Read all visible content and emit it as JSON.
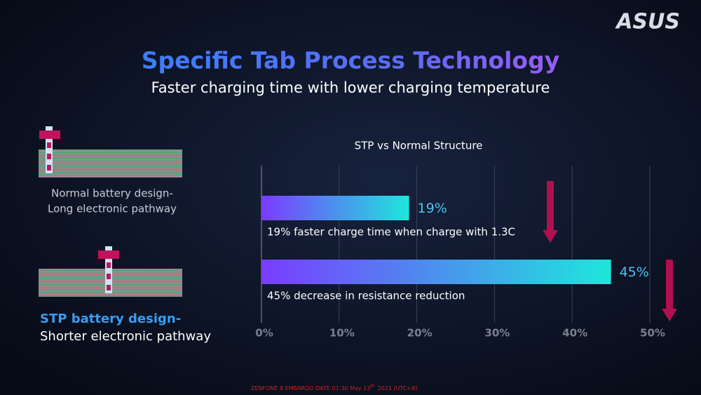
{
  "slide": {
    "logo": "ASUS",
    "title": "Specific Tab Process Technology",
    "subtitle": "Faster charging time with lower charging temperature",
    "normal_design": [
      "Normal battery design-",
      "Long electronic pathway"
    ],
    "stp_design": [
      "STP battery design-",
      "Shorter electronic pathway"
    ],
    "footer": [
      "ZENFONE 8 EMBARGO DATE 01:30 May 13",
      "th",
      "2021 (UTC+8)"
    ]
  },
  "chart_data": {
    "type": "bar",
    "orientation": "horizontal",
    "title": "STP vs Normal Structure",
    "categories": [
      "19% faster charge time when charge with 1.3C",
      "45% decrease in resistance reduction"
    ],
    "values": [
      19,
      45
    ],
    "value_labels": [
      "19%",
      "45%"
    ],
    "colors": [
      "#7a3cff",
      "#1ee6dc"
    ],
    "xlim": [
      0,
      50
    ],
    "xticks": [
      {
        "value": 0,
        "label": "0%"
      },
      {
        "value": 10,
        "label": "10%"
      },
      {
        "value": 20,
        "label": "20%"
      },
      {
        "value": 30,
        "label": "30%"
      },
      {
        "value": 40,
        "label": "40%"
      },
      {
        "value": 50,
        "label": "50%"
      }
    ],
    "grid": true
  }
}
